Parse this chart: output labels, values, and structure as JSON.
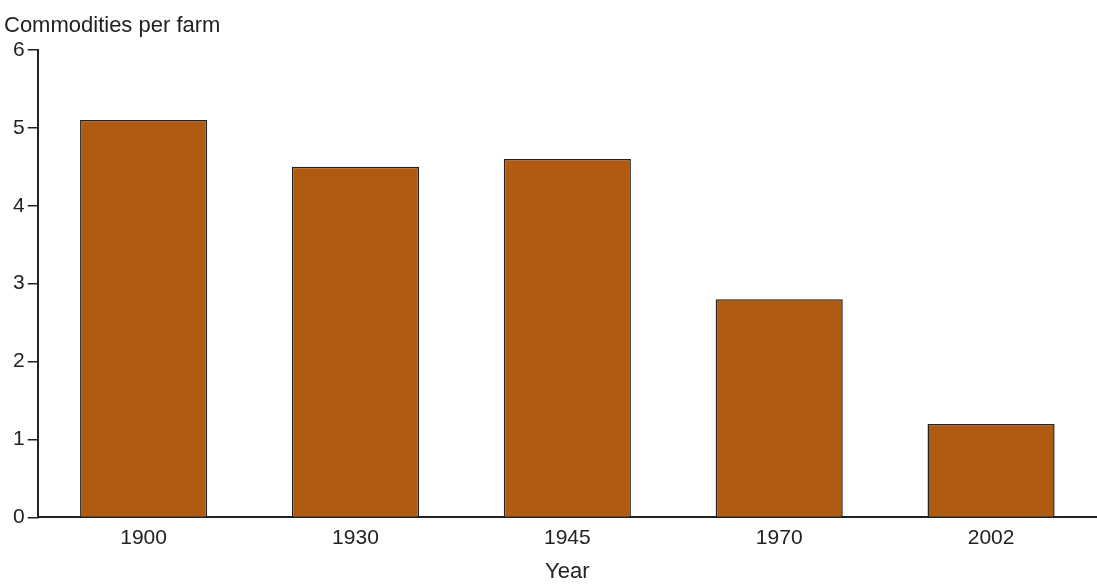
{
  "chart_data": {
    "type": "bar",
    "ylabel": "Commodities per farm",
    "xlabel": "Year",
    "categories": [
      "1900",
      "1930",
      "1945",
      "1970",
      "2002"
    ],
    "values": [
      5.1,
      4.5,
      4.6,
      2.8,
      1.2
    ],
    "color": "#b05a12",
    "ylim": [
      0,
      6
    ],
    "yticks": [
      0,
      1,
      2,
      3,
      4,
      5,
      6
    ],
    "grid": false,
    "legend": false
  }
}
